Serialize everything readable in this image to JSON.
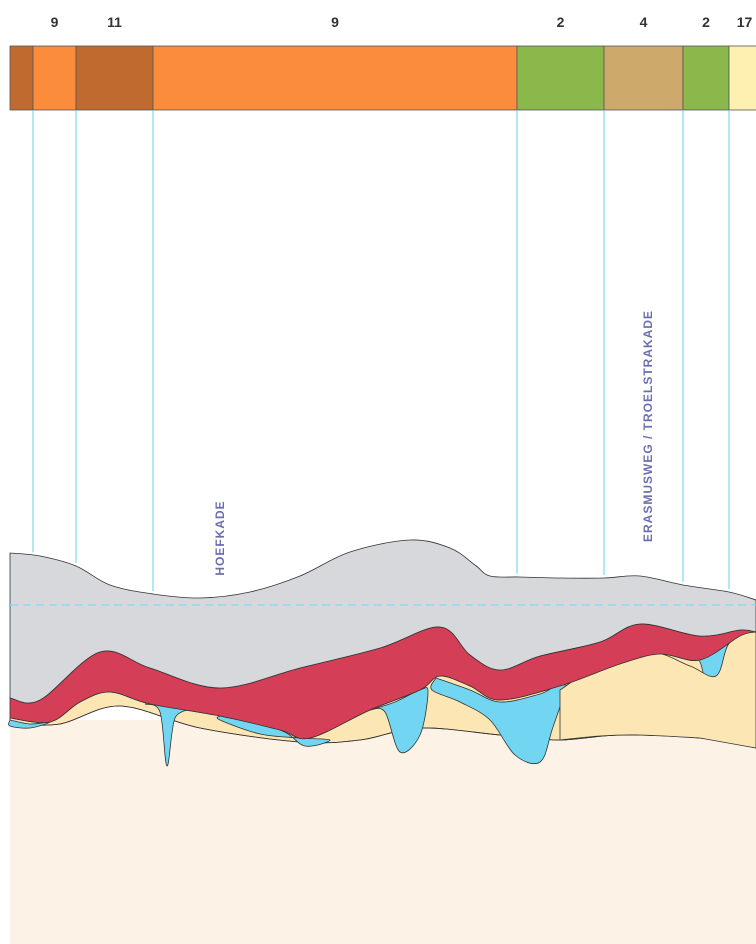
{
  "strip": {
    "segments": [
      {
        "color": "#c06a30"
      },
      {
        "label": "9",
        "color": "#fb8c3c"
      },
      {
        "label": "11",
        "color": "#c06a30"
      },
      {
        "label": "9",
        "color": "#fb8c3c"
      },
      {
        "label": "2",
        "color": "#8bb84a"
      },
      {
        "label": "4",
        "color": "#cda96c"
      },
      {
        "label": "2",
        "color": "#8bb84a"
      },
      {
        "label": "17",
        "color": "#fdf0b0"
      }
    ]
  },
  "streets": [
    "HOEFKADE",
    "ERASMUSWEG / TROELSTRAKADE"
  ]
}
